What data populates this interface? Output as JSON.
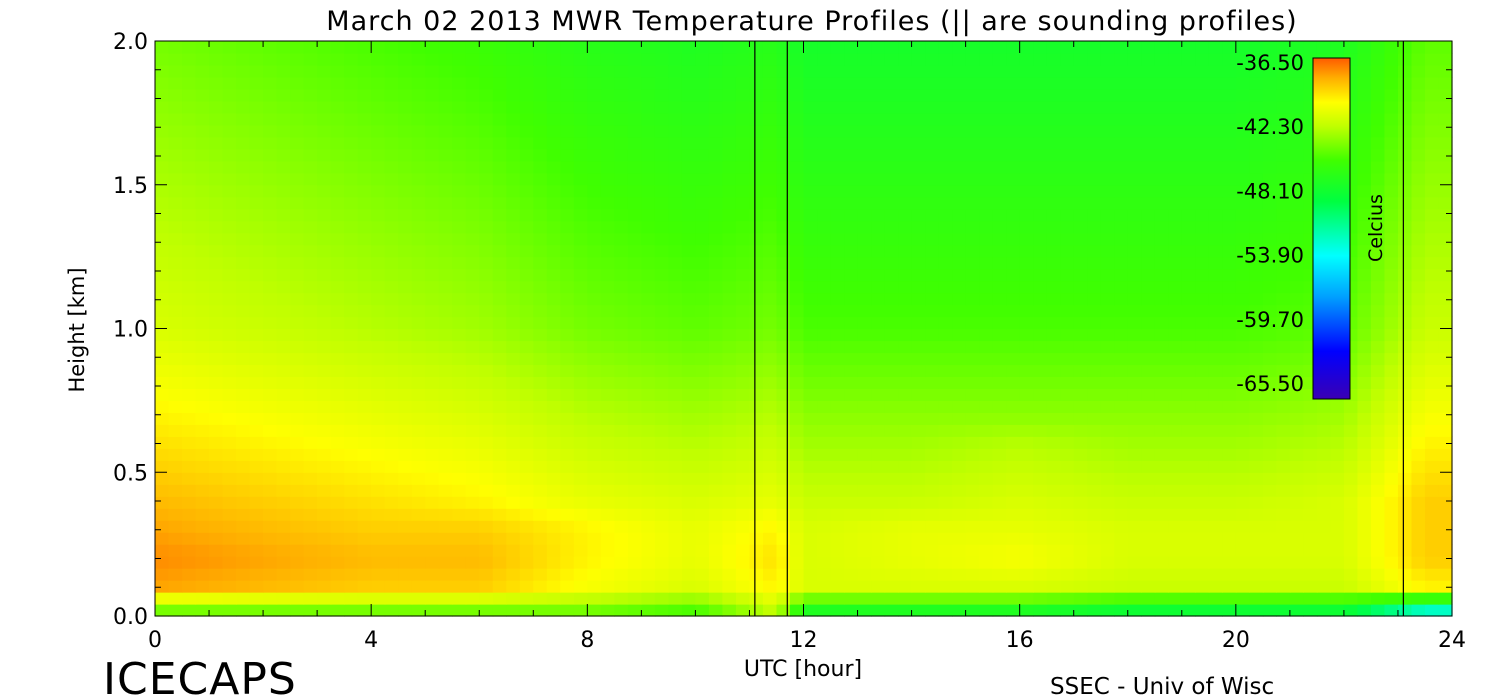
{
  "chart_data": {
    "type": "heatmap",
    "title": "March 02 2013 MWR Temperature Profiles (|| are sounding profiles)",
    "xlabel": "UTC [hour]",
    "ylabel": "Height [km]",
    "xlim": [
      0,
      24
    ],
    "ylim": [
      0,
      2
    ],
    "x_ticks": [
      0,
      4,
      8,
      12,
      16,
      20,
      24
    ],
    "x_tick_labels": [
      "0",
      "4",
      "8",
      "12",
      "16",
      "20",
      "24"
    ],
    "y_ticks": [
      0,
      0.5,
      1,
      1.5,
      2
    ],
    "y_tick_labels": [
      "0.0",
      "0.5",
      "1.0",
      "1.5",
      "2.0"
    ],
    "colorbar": {
      "label": "Celcius",
      "tick_labels": [
        "-36.50",
        "-42.30",
        "-48.10",
        "-53.90",
        "-59.70",
        "-65.50"
      ],
      "range": [
        -65.5,
        -36.5
      ]
    },
    "sounding_times": [
      11.1,
      11.7,
      23.1
    ],
    "temperature_field": {
      "heights_km": [
        0.02,
        0.1,
        0.2,
        0.3,
        0.4,
        0.5,
        0.6,
        0.7,
        0.8,
        0.9,
        1.0,
        1.2,
        1.4,
        1.6,
        1.8,
        2.0
      ],
      "times_hour": [
        0,
        2,
        4,
        6,
        8,
        10,
        11.5,
        12,
        14,
        16,
        18,
        20,
        22,
        23.5
      ],
      "values_celsius": [
        [
          -44,
          -44,
          -44,
          -44,
          -44,
          -45,
          -42,
          -47,
          -47,
          -47,
          -48,
          -48,
          -48,
          -52
        ],
        [
          -38,
          -38.5,
          -39,
          -39,
          -40.5,
          -41.5,
          -40,
          -41.5,
          -41.5,
          -41.5,
          -42,
          -42,
          -42,
          -40
        ],
        [
          -37.5,
          -38,
          -38.5,
          -38.5,
          -40,
          -41,
          -39.5,
          -41.5,
          -41,
          -40.5,
          -41.5,
          -41.5,
          -41.5,
          -39
        ],
        [
          -38,
          -38.5,
          -39,
          -39,
          -40,
          -41,
          -40,
          -41.5,
          -41,
          -41,
          -41.5,
          -41.5,
          -41.5,
          -39
        ],
        [
          -38.5,
          -39,
          -39.5,
          -40,
          -41,
          -41.5,
          -41,
          -42,
          -42,
          -41.5,
          -42,
          -42,
          -41.5,
          -39
        ],
        [
          -39,
          -39.5,
          -40,
          -40.5,
          -41.5,
          -42,
          -41.5,
          -42.5,
          -42.5,
          -42,
          -42.5,
          -42.5,
          -42,
          -39.5
        ],
        [
          -39.5,
          -40,
          -40.5,
          -41,
          -42,
          -42.5,
          -42,
          -43,
          -43,
          -42.5,
          -43,
          -43,
          -42.5,
          -40
        ],
        [
          -40,
          -40.5,
          -41,
          -41.5,
          -42.5,
          -43,
          -42.5,
          -43.5,
          -43.5,
          -43.5,
          -43.5,
          -43.5,
          -43,
          -40.5
        ],
        [
          -40.5,
          -41,
          -41.5,
          -42,
          -43,
          -43.5,
          -43,
          -44,
          -44,
          -44,
          -44,
          -44,
          -43.5,
          -41
        ],
        [
          -41,
          -41.5,
          -42,
          -42.5,
          -43.5,
          -44,
          -43.5,
          -44.5,
          -44.5,
          -44.5,
          -44.5,
          -44.5,
          -44,
          -41.5
        ],
        [
          -41.5,
          -42,
          -42.5,
          -43,
          -44,
          -44.5,
          -44,
          -45,
          -45,
          -45,
          -45,
          -45,
          -44.5,
          -42
        ],
        [
          -42,
          -42.5,
          -43,
          -43.5,
          -44.5,
          -45,
          -44.5,
          -45.5,
          -45.5,
          -45.5,
          -45.5,
          -45.5,
          -45,
          -42.5
        ],
        [
          -42.5,
          -43,
          -43.5,
          -44,
          -45,
          -45.5,
          -45,
          -46,
          -46,
          -46,
          -46,
          -46,
          -45.5,
          -43
        ],
        [
          -43,
          -43.5,
          -44,
          -44.5,
          -45.5,
          -46,
          -45.5,
          -46.5,
          -46.5,
          -46.5,
          -46.5,
          -46.5,
          -46,
          -43.5
        ],
        [
          -43.5,
          -44,
          -44.5,
          -45,
          -46,
          -46.5,
          -46,
          -47,
          -47,
          -47,
          -47,
          -47,
          -46.5,
          -44
        ],
        [
          -44,
          -44.5,
          -45,
          -45.5,
          -46.5,
          -47,
          -46.5,
          -47.5,
          -47.5,
          -47.5,
          -47.5,
          -47.5,
          -47,
          -44.5
        ]
      ]
    }
  },
  "footer": {
    "left": "ICECAPS",
    "right": "SSEC - Univ of Wisc"
  }
}
